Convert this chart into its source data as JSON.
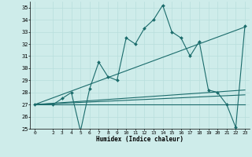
{
  "xlabel": "Humidex (Indice chaleur)",
  "background_color": "#ceecea",
  "line_color": "#1a6b6b",
  "grid_color": "#b8dedd",
  "xlim": [
    -0.5,
    23.5
  ],
  "ylim": [
    25,
    35.5
  ],
  "yticks": [
    25,
    26,
    27,
    28,
    29,
    30,
    31,
    32,
    33,
    34,
    35
  ],
  "xticks": [
    0,
    2,
    3,
    4,
    5,
    6,
    7,
    8,
    9,
    10,
    11,
    12,
    13,
    14,
    15,
    16,
    17,
    18,
    19,
    20,
    21,
    22,
    23
  ],
  "flat_line": {
    "x": [
      0,
      23
    ],
    "y": [
      27.0,
      27.0
    ]
  },
  "diagonal_line": {
    "x": [
      0,
      23
    ],
    "y": [
      27.0,
      33.4
    ]
  },
  "min_line": {
    "x": [
      0,
      23
    ],
    "y": [
      27.0,
      27.8
    ]
  },
  "max_line": {
    "x": [
      0,
      23
    ],
    "y": [
      27.0,
      28.2
    ]
  },
  "main_series_x": [
    0,
    2,
    3,
    4,
    5,
    6,
    7,
    8,
    9,
    10,
    11,
    12,
    13,
    14,
    15,
    16,
    17,
    18,
    19,
    20,
    21,
    22,
    23
  ],
  "main_series_y": [
    27.0,
    27.0,
    27.5,
    28.0,
    24.8,
    28.3,
    30.5,
    29.3,
    29.0,
    32.5,
    32.0,
    33.3,
    34.0,
    35.2,
    33.0,
    32.5,
    31.0,
    32.2,
    28.2,
    28.0,
    27.0,
    25.1,
    33.5
  ]
}
